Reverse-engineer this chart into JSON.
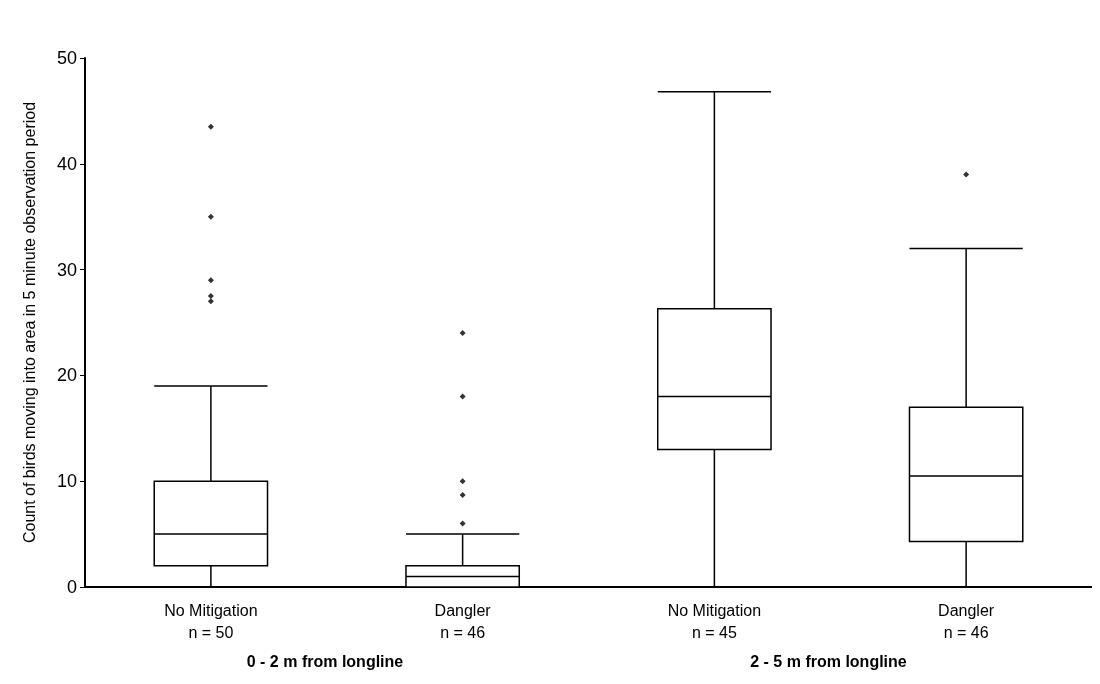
{
  "chart_data": {
    "type": "box",
    "ylabel": "Count of birds moving into area in 5 minute observation period",
    "categories": [
      "No Mitigation\nn = 50",
      "Dangler\nn = 46",
      "No Mitigation\nn = 45",
      "Dangler\nn = 46"
    ],
    "boxes": [
      {
        "low": 0,
        "q1": 2,
        "median": 5,
        "q3": 10,
        "high": 19,
        "outliers": [
          43.5,
          35,
          29,
          27.5,
          27
        ]
      },
      {
        "low": 0,
        "q1": 0,
        "median": 1,
        "q3": 2,
        "high": 5,
        "outliers": [
          24,
          18,
          10,
          8.7,
          6
        ]
      },
      {
        "low": 0,
        "q1": 13,
        "median": 18,
        "q3": 26.3,
        "high": 46.8
      },
      {
        "low": 0,
        "q1": 4.3,
        "median": 10.5,
        "q3": 17,
        "high": 32,
        "outliers": [
          39
        ]
      }
    ],
    "color": "#000000",
    "marker": "diamond",
    "grid": false,
    "ylim": [
      0,
      50
    ],
    "yticks": [
      0,
      10,
      20,
      30,
      40,
      50
    ],
    "annotations": [
      "0 - 2 m from longline",
      "2 - 5 m from longline"
    ]
  }
}
